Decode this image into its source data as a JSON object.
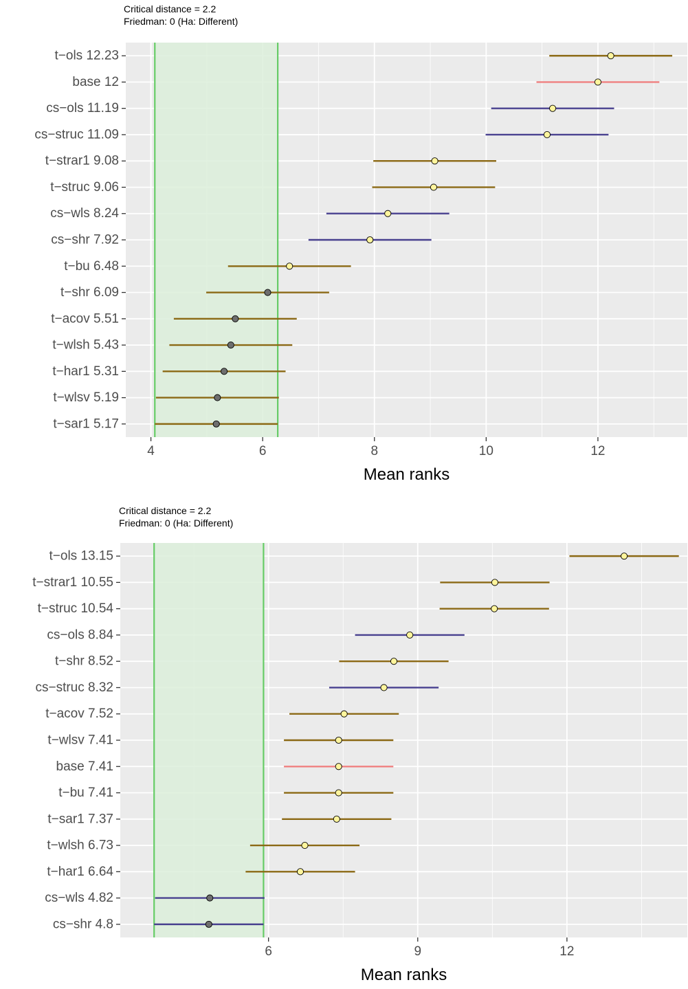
{
  "chart_data": [
    {
      "type": "errorbar-dot",
      "subtitle_lines": [
        "Critical distance = 2.2",
        "Friedman: 0 (Ha: Different)"
      ],
      "xlabel": "Mean ranks",
      "x_ticks": [
        4,
        6,
        8,
        10,
        12
      ],
      "xlim": [
        3.55,
        13.6
      ],
      "critical_distance": 2.2,
      "band": [
        4.07,
        6.27
      ],
      "rows": [
        {
          "label": "t−ols 12.23",
          "mean": 12.23,
          "group": "t"
        },
        {
          "label": "base 12",
          "mean": 12.0,
          "group": "base"
        },
        {
          "label": "cs−ols 11.19",
          "mean": 11.19,
          "group": "cs"
        },
        {
          "label": "cs−struc 11.09",
          "mean": 11.09,
          "group": "cs"
        },
        {
          "label": "t−strar1 9.08",
          "mean": 9.08,
          "group": "t"
        },
        {
          "label": "t−struc 9.06",
          "mean": 9.06,
          "group": "t"
        },
        {
          "label": "cs−wls 8.24",
          "mean": 8.24,
          "group": "cs"
        },
        {
          "label": "cs−shr 7.92",
          "mean": 7.92,
          "group": "cs"
        },
        {
          "label": "t−bu 6.48",
          "mean": 6.48,
          "group": "t"
        },
        {
          "label": "t−shr 6.09",
          "mean": 6.09,
          "group": "t"
        },
        {
          "label": "t−acov 5.51",
          "mean": 5.51,
          "group": "t"
        },
        {
          "label": "t−wlsh 5.43",
          "mean": 5.43,
          "group": "t"
        },
        {
          "label": "t−har1 5.31",
          "mean": 5.31,
          "group": "t"
        },
        {
          "label": "t−wlsv 5.19",
          "mean": 5.19,
          "group": "t"
        },
        {
          "label": "t−sar1 5.17",
          "mean": 5.17,
          "group": "t"
        }
      ]
    },
    {
      "type": "errorbar-dot",
      "subtitle_lines": [
        "Critical distance = 2.2",
        "Friedman: 0 (Ha: Different)"
      ],
      "xlabel": "Mean ranks",
      "x_ticks": [
        6,
        9,
        12
      ],
      "xlim": [
        3.02,
        14.42
      ],
      "critical_distance": 2.2,
      "band": [
        3.7,
        5.9
      ],
      "rows": [
        {
          "label": "t−ols 13.15",
          "mean": 13.15,
          "group": "t"
        },
        {
          "label": "t−strar1 10.55",
          "mean": 10.55,
          "group": "t"
        },
        {
          "label": "t−struc 10.54",
          "mean": 10.54,
          "group": "t"
        },
        {
          "label": "cs−ols 8.84",
          "mean": 8.84,
          "group": "cs"
        },
        {
          "label": "t−shr 8.52",
          "mean": 8.52,
          "group": "t"
        },
        {
          "label": "cs−struc 8.32",
          "mean": 8.32,
          "group": "cs"
        },
        {
          "label": "t−acov 7.52",
          "mean": 7.52,
          "group": "t"
        },
        {
          "label": "t−wlsv 7.41",
          "mean": 7.41,
          "group": "t"
        },
        {
          "label": "base 7.41",
          "mean": 7.41,
          "group": "base"
        },
        {
          "label": "t−bu 7.41",
          "mean": 7.41,
          "group": "t"
        },
        {
          "label": "t−sar1 7.37",
          "mean": 7.37,
          "group": "t"
        },
        {
          "label": "t−wlsh 6.73",
          "mean": 6.73,
          "group": "t"
        },
        {
          "label": "t−har1 6.64",
          "mean": 6.64,
          "group": "t"
        },
        {
          "label": "cs−wls 4.82",
          "mean": 4.82,
          "group": "cs"
        },
        {
          "label": "cs−shr 4.8",
          "mean": 4.8,
          "group": "cs"
        }
      ]
    }
  ],
  "colors": {
    "t": "#8b6914",
    "cs": "#48408f",
    "base": "#f08080",
    "point_significant": "#fff59d",
    "point_nonsignificant": "#6e6e6e",
    "band_fill": "#dceedb",
    "band_line": "#66cc66",
    "panel_bg": "#ebebeb",
    "grid": "#ffffff"
  }
}
